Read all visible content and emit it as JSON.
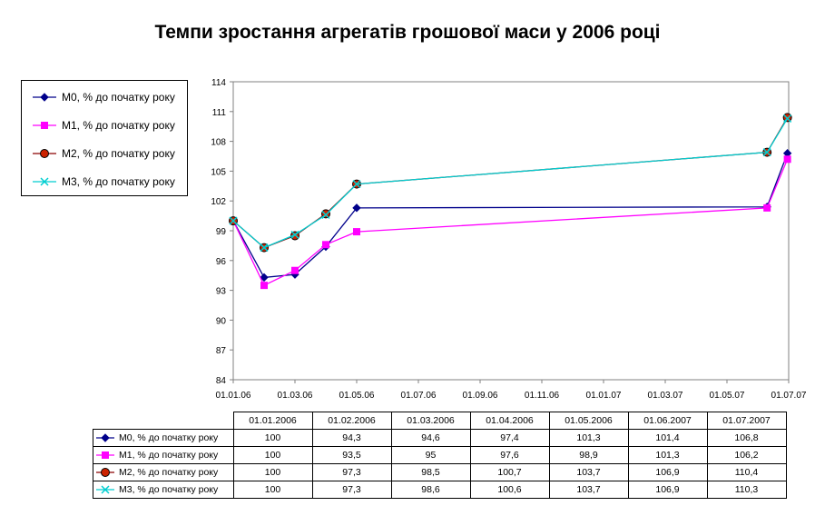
{
  "chart_data": {
    "type": "line",
    "title": "Темпи зростання агрегатів грошової маси у 2006 році",
    "xlabel": "",
    "ylabel": "",
    "x_tick_labels": [
      "01.01.06",
      "01.03.06",
      "01.05.06",
      "01.07.06",
      "01.09.06",
      "01.11.06",
      "01.01.07",
      "01.03.07",
      "01.05.07",
      "01.07.07"
    ],
    "y_tick_labels": [
      "84",
      "87",
      "90",
      "93",
      "96",
      "99",
      "102",
      "105",
      "108",
      "111",
      "114"
    ],
    "ylim": [
      84,
      114
    ],
    "grid": false,
    "legend_position": "left",
    "categories": [
      "01.01.2006",
      "01.02.2006",
      "01.03.2006",
      "01.04.2006",
      "01.05.2006",
      "01.06.2007",
      "01.07.2007"
    ],
    "series": [
      {
        "name": "M0, % до початку року",
        "color": "#00008B",
        "marker": "diamond",
        "values": [
          100,
          94.3,
          94.6,
          97.4,
          101.3,
          101.4,
          106.8
        ],
        "labels": [
          "100",
          "94,3",
          "94,6",
          "97,4",
          "101,3",
          "101,4",
          "106,8"
        ]
      },
      {
        "name": "M1, % до початку року",
        "color": "#FF00FF",
        "marker": "square",
        "values": [
          100,
          93.5,
          95,
          97.6,
          98.9,
          101.3,
          106.2
        ],
        "labels": [
          "100",
          "93,5",
          "95",
          "97,6",
          "98,9",
          "101,3",
          "106,2"
        ]
      },
      {
        "name": "M2, % до початку року",
        "color": "#8B0000",
        "marker": "circle",
        "values": [
          100,
          97.3,
          98.5,
          100.7,
          103.7,
          106.9,
          110.4
        ],
        "labels": [
          "100",
          "97,3",
          "98,5",
          "100,7",
          "103,7",
          "106,9",
          "110,4"
        ]
      },
      {
        "name": "M3, % до початку року",
        "color": "#00CED1",
        "marker": "x",
        "values": [
          100,
          97.3,
          98.6,
          100.6,
          103.7,
          106.9,
          110.3
        ],
        "labels": [
          "100",
          "97,3",
          "98,6",
          "100,6",
          "103,7",
          "106,9",
          "110,3"
        ]
      }
    ]
  }
}
